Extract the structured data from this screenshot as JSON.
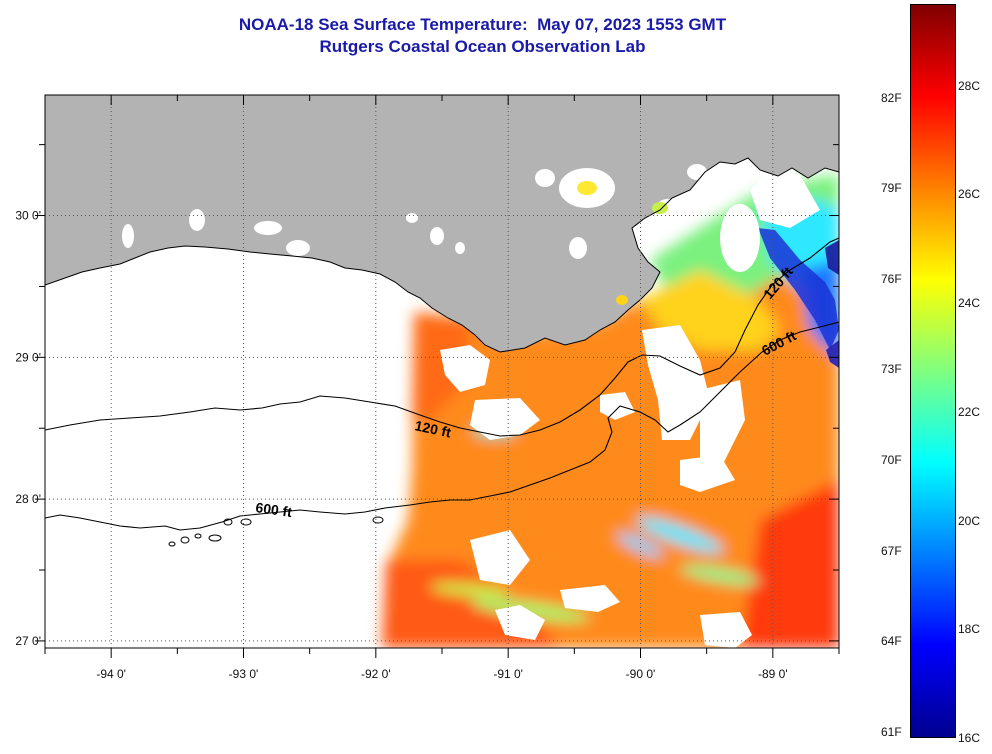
{
  "title": {
    "line1": "NOAA-18 Sea Surface Temperature:  May 07, 2023 1553 GMT",
    "line2": "Rutgers Coastal Ocean Observation Lab"
  },
  "map": {
    "lon_range": [
      -94.5,
      -88.5
    ],
    "lat_range": [
      26.95,
      30.85
    ],
    "longitude_ticks": [
      {
        "value": -94,
        "label": "-94 0'"
      },
      {
        "value": -93,
        "label": "-93 0'"
      },
      {
        "value": -92,
        "label": "-92 0'"
      },
      {
        "value": -91,
        "label": "-91 0'"
      },
      {
        "value": -90,
        "label": "-90 0'"
      },
      {
        "value": -89,
        "label": "-89 0'"
      }
    ],
    "latitude_ticks": [
      {
        "value": 30,
        "label": "30 0'"
      },
      {
        "value": 29,
        "label": "29 0'"
      },
      {
        "value": 28,
        "label": "28 0'"
      },
      {
        "value": 27,
        "label": "27 0'"
      }
    ],
    "grid": "dotted",
    "land_color": "#b3b3b3",
    "no_data_color": "#ffffff",
    "contours": [
      {
        "label": "120 ft"
      },
      {
        "label": "600 ft"
      }
    ],
    "contour_label_instances": [
      {
        "contour": "120 ft",
        "text": "120 ft"
      },
      {
        "contour": "120 ft",
        "text": "120 ft"
      },
      {
        "contour": "600 ft",
        "text": "600 ft"
      },
      {
        "contour": "600 ft",
        "text": "600 ft"
      }
    ]
  },
  "colorbar": {
    "fahrenheit_labels": [
      "82F",
      "79F",
      "76F",
      "73F",
      "70F",
      "67F",
      "64F",
      "61F"
    ],
    "celsius_labels": [
      "28C",
      "26C",
      "24C",
      "22C",
      "20C",
      "18C",
      "16C"
    ],
    "range_c": [
      16,
      29.5
    ],
    "colormap": "jet",
    "stops": [
      "#00008f",
      "#0000ff",
      "#0080ff",
      "#00ffff",
      "#80ff80",
      "#ffff00",
      "#ff8000",
      "#ff0000",
      "#800000"
    ]
  }
}
